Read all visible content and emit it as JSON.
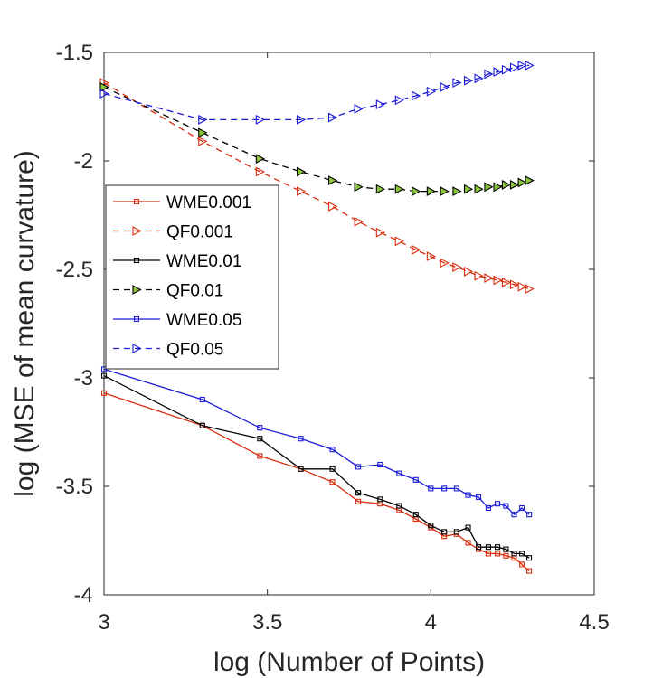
{
  "chart_data": {
    "type": "line",
    "title": "",
    "xlabel": "log (Number of Points)",
    "ylabel": "log (MSE of mean curvature)",
    "xlim": [
      3,
      4.5
    ],
    "ylim": [
      -4,
      -1.5
    ],
    "xticks": [
      3,
      3.5,
      4,
      4.5
    ],
    "xtick_labels": [
      "3",
      "3.5",
      "4",
      "4.5"
    ],
    "yticks": [
      -4,
      -3.5,
      -3,
      -2.5,
      -2,
      -1.5
    ],
    "ytick_labels": [
      "-4",
      "-3.5",
      "-3",
      "-2.5",
      "-2",
      "-1.5"
    ],
    "grid": false,
    "legend_position": "middle-left",
    "series": [
      {
        "name": "WME0.001",
        "color": "#d92b0c",
        "line": "solid",
        "marker": "square",
        "x": [
          3.0,
          3.301,
          3.477,
          3.602,
          3.699,
          3.778,
          3.845,
          3.903,
          3.954,
          4.0,
          4.041,
          4.079,
          4.114,
          4.146,
          4.176,
          4.204,
          4.23,
          4.255,
          4.279,
          4.301
        ],
        "y": [
          -3.07,
          -3.22,
          -3.36,
          -3.42,
          -3.48,
          -3.57,
          -3.58,
          -3.61,
          -3.65,
          -3.69,
          -3.73,
          -3.72,
          -3.76,
          -3.79,
          -3.81,
          -3.81,
          -3.82,
          -3.83,
          -3.86,
          -3.89
        ]
      },
      {
        "name": "QF0.001",
        "color": "#d92b0c",
        "line": "dashed",
        "marker": "triangle-right",
        "x": [
          3.0,
          3.301,
          3.477,
          3.602,
          3.699,
          3.778,
          3.845,
          3.903,
          3.954,
          4.0,
          4.041,
          4.079,
          4.114,
          4.146,
          4.176,
          4.204,
          4.23,
          4.255,
          4.279,
          4.301
        ],
        "y": [
          -1.64,
          -1.91,
          -2.05,
          -2.14,
          -2.21,
          -2.28,
          -2.33,
          -2.37,
          -2.41,
          -2.44,
          -2.47,
          -2.49,
          -2.51,
          -2.53,
          -2.54,
          -2.55,
          -2.56,
          -2.57,
          -2.58,
          -2.59
        ]
      },
      {
        "name": "WME0.01",
        "color": "#000000",
        "line": "solid",
        "marker": "square",
        "x": [
          3.0,
          3.301,
          3.477,
          3.602,
          3.699,
          3.778,
          3.845,
          3.903,
          3.954,
          4.0,
          4.041,
          4.079,
          4.114,
          4.146,
          4.176,
          4.204,
          4.23,
          4.255,
          4.279,
          4.301
        ],
        "y": [
          -2.99,
          -3.22,
          -3.28,
          -3.42,
          -3.42,
          -3.53,
          -3.56,
          -3.59,
          -3.63,
          -3.68,
          -3.71,
          -3.71,
          -3.69,
          -3.78,
          -3.78,
          -3.78,
          -3.79,
          -3.81,
          -3.81,
          -3.83
        ]
      },
      {
        "name": "QF0.01",
        "color": "#000000",
        "line": "dashed",
        "marker": "triangle-right",
        "marker_fill": "#8cc63e",
        "x": [
          3.0,
          3.301,
          3.477,
          3.602,
          3.699,
          3.778,
          3.845,
          3.903,
          3.954,
          4.0,
          4.041,
          4.079,
          4.114,
          4.146,
          4.176,
          4.204,
          4.23,
          4.255,
          4.279,
          4.301
        ],
        "y": [
          -1.66,
          -1.87,
          -1.99,
          -2.05,
          -2.09,
          -2.12,
          -2.13,
          -2.13,
          -2.14,
          -2.14,
          -2.14,
          -2.14,
          -2.13,
          -2.13,
          -2.12,
          -2.12,
          -2.11,
          -2.11,
          -2.1,
          -2.09
        ]
      },
      {
        "name": "WME0.05",
        "color": "#1a1ad9",
        "line": "solid",
        "marker": "square",
        "x": [
          3.0,
          3.301,
          3.477,
          3.602,
          3.699,
          3.778,
          3.845,
          3.903,
          3.954,
          4.0,
          4.041,
          4.079,
          4.114,
          4.146,
          4.176,
          4.204,
          4.23,
          4.255,
          4.279,
          4.301
        ],
        "y": [
          -2.96,
          -3.1,
          -3.23,
          -3.28,
          -3.33,
          -3.41,
          -3.4,
          -3.44,
          -3.47,
          -3.51,
          -3.51,
          -3.51,
          -3.54,
          -3.55,
          -3.6,
          -3.58,
          -3.59,
          -3.63,
          -3.6,
          -3.63
        ]
      },
      {
        "name": "QF0.05",
        "color": "#1a1ad9",
        "line": "dashed",
        "marker": "triangle-right",
        "x": [
          3.0,
          3.301,
          3.477,
          3.602,
          3.699,
          3.778,
          3.845,
          3.903,
          3.954,
          4.0,
          4.041,
          4.079,
          4.114,
          4.146,
          4.176,
          4.204,
          4.23,
          4.255,
          4.279,
          4.301
        ],
        "y": [
          -1.69,
          -1.81,
          -1.81,
          -1.81,
          -1.8,
          -1.76,
          -1.74,
          -1.72,
          -1.7,
          -1.68,
          -1.66,
          -1.64,
          -1.63,
          -1.62,
          -1.6,
          -1.59,
          -1.58,
          -1.57,
          -1.56,
          -1.56
        ]
      }
    ]
  }
}
